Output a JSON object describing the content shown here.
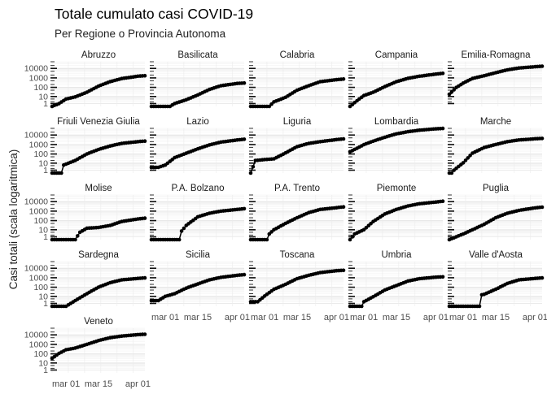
{
  "chart_data": {
    "type": "scatter",
    "title": "Totale cumulato casi COVID-19",
    "subtitle": "Per Regione o Provincia Autonoma",
    "ylabel": "Casi totali (scala logaritmica)",
    "xlabel": "",
    "y_scale": "log10 (value + 1)",
    "y_ticks": [
      "1",
      "10",
      "100",
      "1000",
      "10000"
    ],
    "x_ticks": [
      "mar 01",
      "mar 15",
      "apr 01"
    ],
    "x_range": [
      "2020-02-24",
      "2020-04-04"
    ],
    "grid": true,
    "legend": "none",
    "point_color": "#000000",
    "point_sampling": "Values shown for selected days of the daily series; points are plotted daily along the curve",
    "panels": [
      {
        "name": "Abruzzo",
        "values": [
          {
            "date": "2020-02-24",
            "y": 0
          },
          {
            "date": "2020-02-27",
            "y": 1
          },
          {
            "date": "2020-03-01",
            "y": 5
          },
          {
            "date": "2020-03-05",
            "y": 9
          },
          {
            "date": "2020-03-10",
            "y": 30
          },
          {
            "date": "2020-03-15",
            "y": 137
          },
          {
            "date": "2020-03-20",
            "y": 400
          },
          {
            "date": "2020-03-25",
            "y": 850
          },
          {
            "date": "2020-04-01",
            "y": 1500
          },
          {
            "date": "2020-04-04",
            "y": 1700
          }
        ]
      },
      {
        "name": "Basilicata",
        "values": [
          {
            "date": "2020-02-24",
            "y": 0
          },
          {
            "date": "2020-03-03",
            "y": 0
          },
          {
            "date": "2020-03-05",
            "y": 1
          },
          {
            "date": "2020-03-10",
            "y": 4
          },
          {
            "date": "2020-03-15",
            "y": 15
          },
          {
            "date": "2020-03-20",
            "y": 60
          },
          {
            "date": "2020-03-25",
            "y": 150
          },
          {
            "date": "2020-04-01",
            "y": 260
          },
          {
            "date": "2020-04-04",
            "y": 290
          }
        ]
      },
      {
        "name": "Calabria",
        "values": [
          {
            "date": "2020-02-24",
            "y": 0
          },
          {
            "date": "2020-03-03",
            "y": 0
          },
          {
            "date": "2020-03-05",
            "y": 2
          },
          {
            "date": "2020-03-10",
            "y": 8
          },
          {
            "date": "2020-03-15",
            "y": 50
          },
          {
            "date": "2020-03-20",
            "y": 150
          },
          {
            "date": "2020-03-25",
            "y": 400
          },
          {
            "date": "2020-04-01",
            "y": 650
          },
          {
            "date": "2020-04-04",
            "y": 750
          }
        ]
      },
      {
        "name": "Campania",
        "values": [
          {
            "date": "2020-02-24",
            "y": 0
          },
          {
            "date": "2020-02-27",
            "y": 3
          },
          {
            "date": "2020-03-01",
            "y": 13
          },
          {
            "date": "2020-03-05",
            "y": 30
          },
          {
            "date": "2020-03-10",
            "y": 120
          },
          {
            "date": "2020-03-15",
            "y": 400
          },
          {
            "date": "2020-03-20",
            "y": 900
          },
          {
            "date": "2020-03-25",
            "y": 1500
          },
          {
            "date": "2020-04-01",
            "y": 2500
          },
          {
            "date": "2020-04-04",
            "y": 3000
          }
        ]
      },
      {
        "name": "Emilia-Romagna",
        "values": [
          {
            "date": "2020-02-24",
            "y": 18
          },
          {
            "date": "2020-02-27",
            "y": 97
          },
          {
            "date": "2020-03-01",
            "y": 285
          },
          {
            "date": "2020-03-05",
            "y": 870
          },
          {
            "date": "2020-03-10",
            "y": 1700
          },
          {
            "date": "2020-03-15",
            "y": 3500
          },
          {
            "date": "2020-03-20",
            "y": 7000
          },
          {
            "date": "2020-03-25",
            "y": 11000
          },
          {
            "date": "2020-04-01",
            "y": 15000
          },
          {
            "date": "2020-04-04",
            "y": 17000
          }
        ]
      },
      {
        "name": "Friuli Venezia Giulia",
        "values": [
          {
            "date": "2020-02-24",
            "y": 0
          },
          {
            "date": "2020-02-28",
            "y": 0
          },
          {
            "date": "2020-02-29",
            "y": 6
          },
          {
            "date": "2020-03-05",
            "y": 20
          },
          {
            "date": "2020-03-10",
            "y": 100
          },
          {
            "date": "2020-03-15",
            "y": 300
          },
          {
            "date": "2020-03-20",
            "y": 700
          },
          {
            "date": "2020-03-25",
            "y": 1300
          },
          {
            "date": "2020-04-01",
            "y": 2000
          },
          {
            "date": "2020-04-04",
            "y": 2300
          }
        ]
      },
      {
        "name": "Lazio",
        "values": [
          {
            "date": "2020-02-24",
            "y": 3
          },
          {
            "date": "2020-02-27",
            "y": 3
          },
          {
            "date": "2020-03-01",
            "y": 6
          },
          {
            "date": "2020-03-05",
            "y": 40
          },
          {
            "date": "2020-03-10",
            "y": 120
          },
          {
            "date": "2020-03-15",
            "y": 350
          },
          {
            "date": "2020-03-20",
            "y": 900
          },
          {
            "date": "2020-03-25",
            "y": 1800
          },
          {
            "date": "2020-04-01",
            "y": 3000
          },
          {
            "date": "2020-04-04",
            "y": 3600
          }
        ]
      },
      {
        "name": "Liguria",
        "values": [
          {
            "date": "2020-02-24",
            "y": 0
          },
          {
            "date": "2020-02-26",
            "y": 20
          },
          {
            "date": "2020-03-01",
            "y": 25
          },
          {
            "date": "2020-03-05",
            "y": 30
          },
          {
            "date": "2020-03-10",
            "y": 130
          },
          {
            "date": "2020-03-15",
            "y": 600
          },
          {
            "date": "2020-03-20",
            "y": 1300
          },
          {
            "date": "2020-03-25",
            "y": 2000
          },
          {
            "date": "2020-04-01",
            "y": 3300
          },
          {
            "date": "2020-04-04",
            "y": 3900
          }
        ]
      },
      {
        "name": "Lombardia",
        "values": [
          {
            "date": "2020-02-24",
            "y": 172
          },
          {
            "date": "2020-02-27",
            "y": 403
          },
          {
            "date": "2020-03-01",
            "y": 984
          },
          {
            "date": "2020-03-05",
            "y": 2251
          },
          {
            "date": "2020-03-10",
            "y": 5791
          },
          {
            "date": "2020-03-15",
            "y": 13272
          },
          {
            "date": "2020-03-20",
            "y": 22264
          },
          {
            "date": "2020-03-25",
            "y": 32346
          },
          {
            "date": "2020-04-01",
            "y": 44773
          },
          {
            "date": "2020-04-04",
            "y": 49118
          }
        ]
      },
      {
        "name": "Marche",
        "values": [
          {
            "date": "2020-02-24",
            "y": 0
          },
          {
            "date": "2020-02-25",
            "y": 0
          },
          {
            "date": "2020-02-26",
            "y": 1
          },
          {
            "date": "2020-03-01",
            "y": 11
          },
          {
            "date": "2020-03-05",
            "y": 124
          },
          {
            "date": "2020-03-10",
            "y": 479
          },
          {
            "date": "2020-03-15",
            "y": 1000
          },
          {
            "date": "2020-03-20",
            "y": 2000
          },
          {
            "date": "2020-03-25",
            "y": 3000
          },
          {
            "date": "2020-04-01",
            "y": 4000
          },
          {
            "date": "2020-04-04",
            "y": 4400
          }
        ]
      },
      {
        "name": "Molise",
        "values": [
          {
            "date": "2020-02-24",
            "y": 0
          },
          {
            "date": "2020-03-05",
            "y": 0
          },
          {
            "date": "2020-03-07",
            "y": 5
          },
          {
            "date": "2020-03-10",
            "y": 15
          },
          {
            "date": "2020-03-15",
            "y": 18
          },
          {
            "date": "2020-03-20",
            "y": 30
          },
          {
            "date": "2020-03-25",
            "y": 80
          },
          {
            "date": "2020-04-01",
            "y": 150
          },
          {
            "date": "2020-04-04",
            "y": 180
          }
        ]
      },
      {
        "name": "P.A. Bolzano",
        "values": [
          {
            "date": "2020-02-24",
            "y": 0
          },
          {
            "date": "2020-03-07",
            "y": 0
          },
          {
            "date": "2020-03-08",
            "y": 7
          },
          {
            "date": "2020-03-10",
            "y": 30
          },
          {
            "date": "2020-03-15",
            "y": 250
          },
          {
            "date": "2020-03-20",
            "y": 600
          },
          {
            "date": "2020-03-25",
            "y": 1000
          },
          {
            "date": "2020-04-01",
            "y": 1500
          },
          {
            "date": "2020-04-04",
            "y": 1800
          }
        ]
      },
      {
        "name": "P.A. Trento",
        "values": [
          {
            "date": "2020-02-24",
            "y": 0
          },
          {
            "date": "2020-03-02",
            "y": 0
          },
          {
            "date": "2020-03-03",
            "y": 3
          },
          {
            "date": "2020-03-05",
            "y": 10
          },
          {
            "date": "2020-03-10",
            "y": 50
          },
          {
            "date": "2020-03-15",
            "y": 200
          },
          {
            "date": "2020-03-20",
            "y": 700
          },
          {
            "date": "2020-03-25",
            "y": 1500
          },
          {
            "date": "2020-04-01",
            "y": 2300
          },
          {
            "date": "2020-04-04",
            "y": 2800
          }
        ]
      },
      {
        "name": "Piemonte",
        "values": [
          {
            "date": "2020-02-24",
            "y": 0
          },
          {
            "date": "2020-02-26",
            "y": 3
          },
          {
            "date": "2020-03-01",
            "y": 10
          },
          {
            "date": "2020-03-05",
            "y": 80
          },
          {
            "date": "2020-03-10",
            "y": 500
          },
          {
            "date": "2020-03-15",
            "y": 1500
          },
          {
            "date": "2020-03-20",
            "y": 3500
          },
          {
            "date": "2020-03-25",
            "y": 6000
          },
          {
            "date": "2020-04-01",
            "y": 9000
          },
          {
            "date": "2020-04-04",
            "y": 11000
          }
        ]
      },
      {
        "name": "Puglia",
        "values": [
          {
            "date": "2020-02-24",
            "y": 0
          },
          {
            "date": "2020-02-27",
            "y": 1
          },
          {
            "date": "2020-03-01",
            "y": 3
          },
          {
            "date": "2020-03-05",
            "y": 10
          },
          {
            "date": "2020-03-10",
            "y": 40
          },
          {
            "date": "2020-03-15",
            "y": 200
          },
          {
            "date": "2020-03-20",
            "y": 600
          },
          {
            "date": "2020-03-25",
            "y": 1200
          },
          {
            "date": "2020-04-01",
            "y": 2200
          },
          {
            "date": "2020-04-04",
            "y": 2600
          }
        ]
      },
      {
        "name": "Sardegna",
        "values": [
          {
            "date": "2020-02-24",
            "y": 0
          },
          {
            "date": "2020-03-01",
            "y": 0
          },
          {
            "date": "2020-03-03",
            "y": 1
          },
          {
            "date": "2020-03-05",
            "y": 3
          },
          {
            "date": "2020-03-10",
            "y": 20
          },
          {
            "date": "2020-03-15",
            "y": 100
          },
          {
            "date": "2020-03-20",
            "y": 300
          },
          {
            "date": "2020-03-25",
            "y": 600
          },
          {
            "date": "2020-04-01",
            "y": 850
          },
          {
            "date": "2020-04-04",
            "y": 950
          }
        ]
      },
      {
        "name": "Sicilia",
        "values": [
          {
            "date": "2020-02-24",
            "y": 3
          },
          {
            "date": "2020-02-27",
            "y": 3
          },
          {
            "date": "2020-03-01",
            "y": 10
          },
          {
            "date": "2020-03-05",
            "y": 20
          },
          {
            "date": "2020-03-10",
            "y": 80
          },
          {
            "date": "2020-03-15",
            "y": 220
          },
          {
            "date": "2020-03-20",
            "y": 600
          },
          {
            "date": "2020-03-25",
            "y": 1100
          },
          {
            "date": "2020-04-01",
            "y": 1800
          },
          {
            "date": "2020-04-04",
            "y": 2100
          }
        ]
      },
      {
        "name": "Toscana",
        "values": [
          {
            "date": "2020-02-24",
            "y": 2
          },
          {
            "date": "2020-02-27",
            "y": 2
          },
          {
            "date": "2020-03-01",
            "y": 11
          },
          {
            "date": "2020-03-05",
            "y": 60
          },
          {
            "date": "2020-03-10",
            "y": 200
          },
          {
            "date": "2020-03-15",
            "y": 800
          },
          {
            "date": "2020-03-20",
            "y": 1800
          },
          {
            "date": "2020-03-25",
            "y": 3500
          },
          {
            "date": "2020-04-01",
            "y": 5500
          },
          {
            "date": "2020-04-04",
            "y": 6000
          }
        ]
      },
      {
        "name": "Umbria",
        "values": [
          {
            "date": "2020-02-24",
            "y": 0
          },
          {
            "date": "2020-02-29",
            "y": 0
          },
          {
            "date": "2020-03-01",
            "y": 2
          },
          {
            "date": "2020-03-05",
            "y": 9
          },
          {
            "date": "2020-03-10",
            "y": 50
          },
          {
            "date": "2020-03-15",
            "y": 150
          },
          {
            "date": "2020-03-20",
            "y": 450
          },
          {
            "date": "2020-03-25",
            "y": 800
          },
          {
            "date": "2020-04-01",
            "y": 1150
          },
          {
            "date": "2020-04-04",
            "y": 1250
          }
        ]
      },
      {
        "name": "Valle d'Aosta",
        "values": [
          {
            "date": "2020-02-24",
            "y": 0
          },
          {
            "date": "2020-03-08",
            "y": 0
          },
          {
            "date": "2020-03-09",
            "y": 15
          },
          {
            "date": "2020-03-10",
            "y": 17
          },
          {
            "date": "2020-03-15",
            "y": 60
          },
          {
            "date": "2020-03-20",
            "y": 250
          },
          {
            "date": "2020-03-25",
            "y": 600
          },
          {
            "date": "2020-04-01",
            "y": 850
          },
          {
            "date": "2020-04-04",
            "y": 950
          }
        ]
      },
      {
        "name": "Veneto",
        "values": [
          {
            "date": "2020-02-24",
            "y": 33
          },
          {
            "date": "2020-02-27",
            "y": 111
          },
          {
            "date": "2020-03-01",
            "y": 273
          },
          {
            "date": "2020-03-05",
            "y": 407
          },
          {
            "date": "2020-03-10",
            "y": 1000
          },
          {
            "date": "2020-03-15",
            "y": 2500
          },
          {
            "date": "2020-03-20",
            "y": 5000
          },
          {
            "date": "2020-03-25",
            "y": 7500
          },
          {
            "date": "2020-04-01",
            "y": 10500
          },
          {
            "date": "2020-04-04",
            "y": 11500
          }
        ]
      }
    ]
  }
}
